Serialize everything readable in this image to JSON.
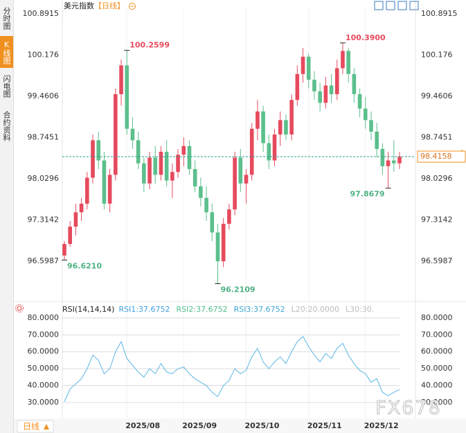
{
  "sidebar": {
    "tabs": [
      "分时图",
      "K线图",
      "闪电图",
      "合约资料"
    ]
  },
  "chart_data": [
    {
      "type": "candlestick",
      "title": "美元指数",
      "period": "【日线】",
      "up_color": "#e64a5d",
      "down_color": "#5cbf8c",
      "ylim": [
        95.94,
        100.99
      ],
      "yticks": [
        100.8915,
        100.176,
        99.4606,
        98.7451,
        98.0296,
        97.3142,
        96.5987
      ],
      "last_price": 98.4158,
      "categories": [
        null,
        null,
        null,
        null,
        null,
        null,
        null,
        null,
        null,
        null,
        null,
        "2025/08",
        null,
        null,
        null,
        null,
        null,
        null,
        null,
        null,
        null,
        "2025/09",
        null,
        null,
        null,
        null,
        null,
        null,
        null,
        null,
        null,
        null,
        "2025/10",
        null,
        null,
        null,
        null,
        null,
        null,
        null,
        null,
        null,
        null,
        "2025/11",
        null,
        null,
        null,
        null,
        null,
        null,
        null,
        null,
        null,
        "2025/12",
        null,
        null,
        null,
        null,
        null,
        null
      ],
      "candles": [
        {
          "open": 96.7,
          "high": 96.95,
          "low": 96.621,
          "close": 96.9
        },
        {
          "open": 96.9,
          "high": 97.3,
          "low": 96.85,
          "close": 97.2
        },
        {
          "open": 97.2,
          "high": 97.6,
          "low": 97.05,
          "close": 97.45
        },
        {
          "open": 97.45,
          "high": 97.7,
          "low": 97.3,
          "close": 97.6
        },
        {
          "open": 97.6,
          "high": 98.15,
          "low": 97.5,
          "close": 98.05
        },
        {
          "open": 98.05,
          "high": 98.8,
          "low": 97.95,
          "close": 98.7
        },
        {
          "open": 98.7,
          "high": 98.85,
          "low": 98.2,
          "close": 98.35
        },
        {
          "open": 98.35,
          "high": 98.5,
          "low": 97.5,
          "close": 97.6
        },
        {
          "open": 97.6,
          "high": 98.2,
          "low": 97.45,
          "close": 98.1
        },
        {
          "open": 98.1,
          "high": 99.6,
          "low": 98.0,
          "close": 99.5
        },
        {
          "open": 99.5,
          "high": 100.1,
          "low": 99.3,
          "close": 100.0
        },
        {
          "open": 100.0,
          "high": 100.2599,
          "low": 98.8,
          "close": 98.9
        },
        {
          "open": 98.9,
          "high": 99.1,
          "low": 98.55,
          "close": 98.7
        },
        {
          "open": 98.7,
          "high": 98.85,
          "low": 98.2,
          "close": 98.3
        },
        {
          "open": 98.3,
          "high": 98.4,
          "low": 97.8,
          "close": 97.95
        },
        {
          "open": 97.95,
          "high": 98.5,
          "low": 97.85,
          "close": 98.4
        },
        {
          "open": 98.4,
          "high": 98.6,
          "low": 97.95,
          "close": 98.1
        },
        {
          "open": 98.1,
          "high": 98.6,
          "low": 98.0,
          "close": 98.5
        },
        {
          "open": 98.5,
          "high": 98.7,
          "low": 97.9,
          "close": 98.0
        },
        {
          "open": 98.0,
          "high": 98.3,
          "low": 97.7,
          "close": 98.15
        },
        {
          "open": 98.15,
          "high": 98.55,
          "low": 98.05,
          "close": 98.45
        },
        {
          "open": 98.45,
          "high": 98.75,
          "low": 98.25,
          "close": 98.6
        },
        {
          "open": 98.6,
          "high": 98.7,
          "low": 98.1,
          "close": 98.2
        },
        {
          "open": 98.2,
          "high": 98.35,
          "low": 97.8,
          "close": 97.9
        },
        {
          "open": 97.9,
          "high": 98.05,
          "low": 97.55,
          "close": 97.7
        },
        {
          "open": 97.7,
          "high": 97.9,
          "low": 97.3,
          "close": 97.45
        },
        {
          "open": 97.45,
          "high": 97.6,
          "low": 96.95,
          "close": 97.1
        },
        {
          "open": 97.1,
          "high": 97.25,
          "low": 96.2109,
          "close": 96.6
        },
        {
          "open": 96.6,
          "high": 97.35,
          "low": 96.5,
          "close": 97.25
        },
        {
          "open": 97.25,
          "high": 97.6,
          "low": 97.15,
          "close": 97.5
        },
        {
          "open": 97.5,
          "high": 98.5,
          "low": 97.4,
          "close": 98.4
        },
        {
          "open": 98.4,
          "high": 98.55,
          "low": 97.8,
          "close": 97.95
        },
        {
          "open": 97.95,
          "high": 98.2,
          "low": 97.6,
          "close": 98.1
        },
        {
          "open": 98.1,
          "high": 99.0,
          "low": 98.0,
          "close": 98.9
        },
        {
          "open": 98.9,
          "high": 99.4,
          "low": 98.7,
          "close": 99.2
        },
        {
          "open": 99.2,
          "high": 99.3,
          "low": 98.5,
          "close": 98.65
        },
        {
          "open": 98.65,
          "high": 98.8,
          "low": 98.2,
          "close": 98.35
        },
        {
          "open": 98.35,
          "high": 98.9,
          "low": 98.25,
          "close": 98.8
        },
        {
          "open": 98.8,
          "high": 99.2,
          "low": 98.6,
          "close": 99.05
        },
        {
          "open": 99.05,
          "high": 99.15,
          "low": 98.7,
          "close": 98.8
        },
        {
          "open": 98.8,
          "high": 99.5,
          "low": 98.7,
          "close": 99.4
        },
        {
          "open": 99.4,
          "high": 100.0,
          "low": 99.3,
          "close": 99.85
        },
        {
          "open": 99.85,
          "high": 100.3,
          "low": 99.7,
          "close": 100.15
        },
        {
          "open": 100.15,
          "high": 100.2,
          "low": 99.6,
          "close": 99.75
        },
        {
          "open": 99.75,
          "high": 99.9,
          "low": 99.4,
          "close": 99.55
        },
        {
          "open": 99.55,
          "high": 99.7,
          "low": 99.2,
          "close": 99.35
        },
        {
          "open": 99.35,
          "high": 99.8,
          "low": 99.25,
          "close": 99.65
        },
        {
          "open": 99.65,
          "high": 99.85,
          "low": 99.35,
          "close": 99.5
        },
        {
          "open": 99.5,
          "high": 100.1,
          "low": 99.4,
          "close": 99.95
        },
        {
          "open": 99.95,
          "high": 100.39,
          "low": 99.85,
          "close": 100.25
        },
        {
          "open": 100.25,
          "high": 100.3,
          "low": 99.7,
          "close": 99.85
        },
        {
          "open": 99.85,
          "high": 99.95,
          "low": 99.35,
          "close": 99.5
        },
        {
          "open": 99.5,
          "high": 99.6,
          "low": 99.1,
          "close": 99.25
        },
        {
          "open": 99.25,
          "high": 99.45,
          "low": 98.9,
          "close": 99.05
        },
        {
          "open": 99.05,
          "high": 99.2,
          "low": 98.7,
          "close": 98.85
        },
        {
          "open": 98.85,
          "high": 99.0,
          "low": 98.4,
          "close": 98.55
        },
        {
          "open": 98.55,
          "high": 98.65,
          "low": 98.1,
          "close": 98.25
        },
        {
          "open": 98.25,
          "high": 98.5,
          "low": 97.8679,
          "close": 98.35
        },
        {
          "open": 98.35,
          "high": 98.7,
          "low": 98.15,
          "close": 98.3
        },
        {
          "open": 98.3,
          "high": 98.5,
          "low": 98.2,
          "close": 98.4158
        }
      ],
      "annotations": {
        "highs": [
          100.2599,
          {
            "value": 100.39,
            "label": "100.3900"
          }
        ],
        "lows": [
          {
            "value": 96.621,
            "label": "96.6210"
          },
          96.2109,
          97.8679
        ]
      }
    },
    {
      "type": "line",
      "title": "RSI(14,14,14)",
      "legend": [
        {
          "text": "RSI1:37.6752",
          "color": "#3d9fe0"
        },
        {
          "text": "RSI2:37.6752",
          "color": "#4fc08a"
        },
        {
          "text": "RSI3:37.6752",
          "color": "#3aa7d4"
        },
        {
          "text": "L20:20.0000",
          "color": "#bbbbbb"
        },
        {
          "text": "L30:30.",
          "color": "#bbbbbb"
        }
      ],
      "ylim": [
        22.2,
        81.6
      ],
      "yticks": [
        {
          "value": 80,
          "label": "80.0000"
        },
        {
          "value": 70,
          "label": "70.0000"
        },
        {
          "value": 60,
          "label": "60.0000"
        },
        {
          "value": 50,
          "label": "50.0000"
        },
        {
          "value": 40,
          "label": "40.0000"
        },
        {
          "value": 30,
          "label": "30.0000"
        }
      ],
      "series": [
        {
          "color": "#5bb6e6",
          "values": [
            30.5,
            38,
            41,
            44,
            50,
            58,
            55,
            47,
            50,
            60,
            66,
            56,
            52,
            48,
            45,
            50,
            47,
            53,
            48,
            47,
            50,
            51,
            47,
            44,
            42,
            40,
            36,
            33.5,
            40,
            43,
            50,
            47,
            49,
            57,
            62,
            54,
            50,
            54,
            57,
            53,
            60,
            66,
            69,
            63,
            58,
            54,
            59,
            56,
            62,
            65,
            58,
            53,
            49,
            47,
            42,
            44,
            36,
            34,
            36,
            37.6752
          ]
        }
      ]
    }
  ],
  "footer": {
    "period_button": "日线"
  },
  "watermark": "FX678"
}
